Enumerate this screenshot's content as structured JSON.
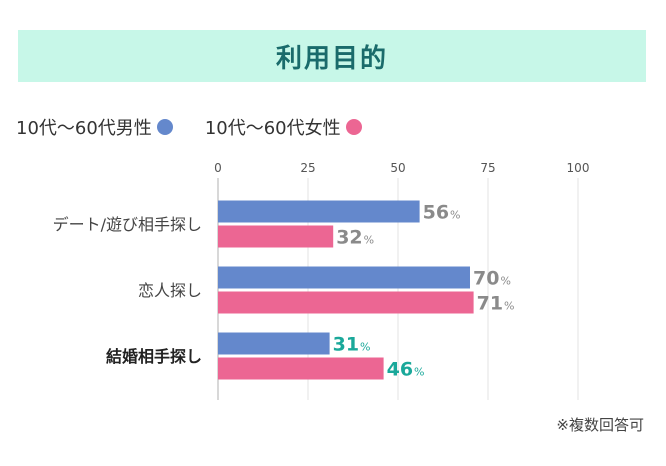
{
  "banner": {
    "title": "利用目的",
    "bg_color": "#c7f7e8",
    "text_color": "#1a6b6b"
  },
  "chart_data": {
    "type": "bar",
    "orientation": "horizontal",
    "categories": [
      "デート/遊び相手探し",
      "恋人探し",
      "結婚相手探し"
    ],
    "series": [
      {
        "name": "10代〜60代男性",
        "values": [
          56,
          70,
          31
        ],
        "color": "#6488cc"
      },
      {
        "name": "10代〜60代女性",
        "values": [
          32,
          71,
          46
        ],
        "color": "#ec6693"
      }
    ],
    "xlim": [
      0,
      100
    ],
    "ticks": [
      0,
      25,
      50,
      75,
      100
    ],
    "value_suffix": "%",
    "grid": true,
    "legend_position": "top-left",
    "label_color": "#8a8a8a",
    "highlight_category_index": 2,
    "highlight_color": "#1aa89a"
  },
  "footnote": "※複数回答可"
}
